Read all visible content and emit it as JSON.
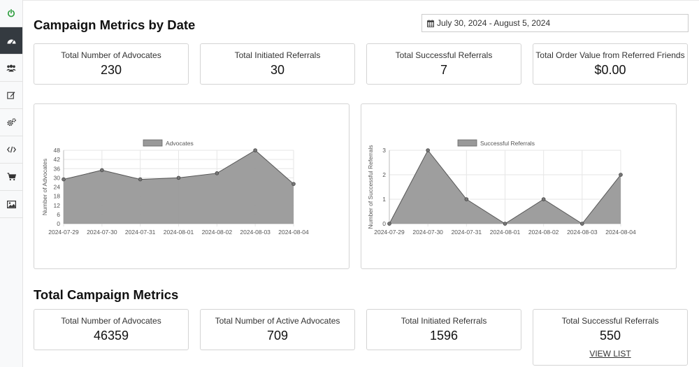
{
  "sidebar": {
    "items": [
      {
        "icon": "power-icon",
        "active": false
      },
      {
        "icon": "dashboard-icon",
        "active": true
      },
      {
        "icon": "users-icon",
        "active": false
      },
      {
        "icon": "edit-icon",
        "active": false
      },
      {
        "icon": "cogs-icon",
        "active": false
      },
      {
        "icon": "code-icon",
        "active": false
      },
      {
        "icon": "cart-icon",
        "active": false
      },
      {
        "icon": "image-icon",
        "active": false
      }
    ],
    "power_color": "#2e9e3e"
  },
  "header": {
    "title": "Campaign Metrics by Date",
    "date_range": "July 30, 2024 - August 5, 2024"
  },
  "date_stats": [
    {
      "label": "Total Number of Advocates",
      "value": "230"
    },
    {
      "label": "Total Initiated Referrals",
      "value": "30"
    },
    {
      "label": "Total Successful Referrals",
      "value": "7"
    },
    {
      "label": "Total Order Value from Referred Friends",
      "value": "$0.00"
    }
  ],
  "chart_data": [
    {
      "type": "area",
      "x": [
        "2024-07-29",
        "2024-07-30",
        "2024-07-31",
        "2024-08-01",
        "2024-08-02",
        "2024-08-03",
        "2024-08-04"
      ],
      "series": [
        {
          "name": "Advocates",
          "values": [
            29,
            35,
            29,
            30,
            33,
            48,
            26
          ]
        }
      ],
      "ylabel": "Number of Advocates",
      "ylim": [
        0,
        48
      ],
      "yticks": [
        "0",
        "6",
        "12",
        "18",
        "24",
        "30",
        "36",
        "42",
        "48"
      ],
      "legend": "top",
      "grid": true,
      "fill_color": "#999999",
      "line_color": "#555555"
    },
    {
      "type": "area",
      "x": [
        "2024-07-29",
        "2024-07-30",
        "2024-07-31",
        "2024-08-01",
        "2024-08-02",
        "2024-08-03",
        "2024-08-04"
      ],
      "series": [
        {
          "name": "Successful Referrals",
          "values": [
            0,
            3,
            1,
            0,
            1,
            0,
            2
          ]
        }
      ],
      "ylabel": "Number of Successful Referrals",
      "ylim": [
        0,
        3
      ],
      "yticks": [
        "0",
        "1",
        "2",
        "3"
      ],
      "legend": "top",
      "grid": true,
      "fill_color": "#999999",
      "line_color": "#555555"
    }
  ],
  "totals": {
    "title": "Total Campaign Metrics",
    "stats": [
      {
        "label": "Total Number of Advocates",
        "value": "46359"
      },
      {
        "label": "Total Number of Active Advocates",
        "value": "709"
      },
      {
        "label": "Total Initiated Referrals",
        "value": "1596"
      },
      {
        "label": "Total Successful Referrals",
        "value": "550",
        "link": "VIEW LIST"
      }
    ]
  }
}
